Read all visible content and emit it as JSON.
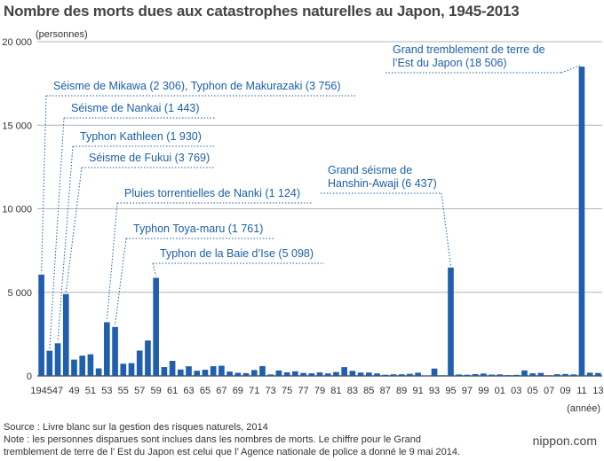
{
  "title": "Nombre des morts dues aux catastrophes naturelles au Japon, 1945-2013",
  "footer": {
    "source": "Source : Livre blanc sur la gestion des risques naturels, 2014",
    "note": "Note : les personnes disparues sont inclues dans les nombres de morts. Le chiffre pour le Grand tremblement de terre de l’ Est du Japon est celui que l’ Agence nationale de police a donné le 9 mai 2014."
  },
  "brand": "nippon.com",
  "colors": {
    "bar": "#1f5fad",
    "annotation": "#1a5fa8",
    "grid": "#b4b4b4",
    "axis": "#333333"
  },
  "chart_data": {
    "type": "bar",
    "title": "Nombre des morts dues aux catastrophes naturelles au Japon, 1945-2013",
    "ylabel": "(personnes)",
    "xlabel": "(année)",
    "ylim": [
      0,
      20000
    ],
    "yticks": [
      0,
      5000,
      10000,
      15000,
      20000
    ],
    "ytick_labels": [
      "0",
      "5 000",
      "10 000",
      "15 000",
      "20 000"
    ],
    "grid": "horizontal",
    "categories": [
      1945,
      1946,
      1947,
      1948,
      1949,
      1950,
      1951,
      1952,
      1953,
      1954,
      1955,
      1956,
      1957,
      1958,
      1959,
      1960,
      1961,
      1962,
      1963,
      1964,
      1965,
      1966,
      1967,
      1968,
      1969,
      1970,
      1971,
      1972,
      1973,
      1974,
      1975,
      1976,
      1977,
      1978,
      1979,
      1980,
      1981,
      1982,
      1983,
      1984,
      1985,
      1986,
      1987,
      1988,
      1989,
      1990,
      1991,
      1992,
      1993,
      1994,
      1995,
      1996,
      1997,
      1998,
      1999,
      2000,
      2001,
      2002,
      2003,
      2004,
      2005,
      2006,
      2007,
      2008,
      2009,
      2010,
      2011,
      2012,
      2013
    ],
    "values": [
      6062,
      1504,
      1950,
      4897,
      975,
      1210,
      1291,
      449,
      3212,
      2926,
      727,
      765,
      1515,
      2120,
      5868,
      528,
      902,
      381,
      575,
      307,
      367,
      578,
      607,
      259,
      183,
      163,
      350,
      587,
      85,
      324,
      213,
      273,
      174,
      153,
      208,
      148,
      232,
      524,
      301,
      199,
      199,
      148,
      69,
      93,
      96,
      123,
      190,
      19,
      438,
      39,
      6482,
      84,
      71,
      109,
      141,
      78,
      90,
      48,
      62,
      327,
      153,
      177,
      39,
      100,
      115,
      89,
      18506,
      190,
      173
    ],
    "year_labels": [
      "1945",
      "47",
      "49",
      "51",
      "53",
      "55",
      "57",
      "59",
      "61",
      "63",
      "65",
      "67",
      "69",
      "71",
      "73",
      "75",
      "77",
      "79",
      "81",
      "83",
      "85",
      "87",
      "89",
      "91",
      "93",
      "95",
      "97",
      "99",
      "01",
      "03",
      "05",
      "07",
      "09",
      "11",
      "13"
    ],
    "annotations": [
      {
        "lines": [
          "Séisme de Mikawa (2 306), Typhon de Makurazaki (3 756)"
        ],
        "year": 1945
      },
      {
        "lines": [
          "Séisme de Nankai (1 443)"
        ],
        "year": 1946
      },
      {
        "lines": [
          "Typhon Kathleen (1 930)"
        ],
        "year": 1947
      },
      {
        "lines": [
          "Séisme de Fukui (3 769)"
        ],
        "year": 1948
      },
      {
        "lines": [
          "Pluies torrentielles de Nanki (1 124)"
        ],
        "year": 1953
      },
      {
        "lines": [
          "Typhon Toya-maru (1 761)"
        ],
        "year": 1954
      },
      {
        "lines": [
          "Typhon de la Baie d’Ise (5 098)"
        ],
        "year": 1959
      },
      {
        "lines": [
          "Grand séisme de",
          "Hanshin-Awaji (6 437)"
        ],
        "year": 1995
      },
      {
        "lines": [
          "Grand tremblement de terre de",
          "l’Est du Japon (18 506)"
        ],
        "year": 2011
      }
    ]
  }
}
